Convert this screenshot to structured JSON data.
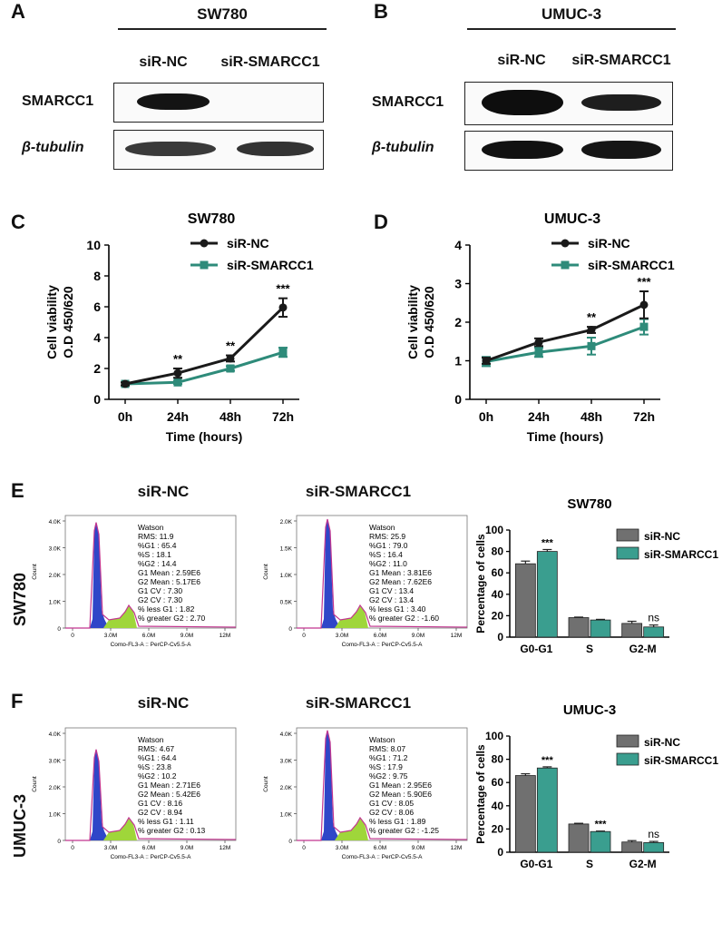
{
  "panels": {
    "A": {
      "letter": "A",
      "title": "SW780",
      "cols": [
        "siR-NC",
        "siR-SMARCC1"
      ],
      "rows": [
        "SMARCC1",
        "β-tubulin"
      ]
    },
    "B": {
      "letter": "B",
      "title": "UMUC-3",
      "cols": [
        "siR-NC",
        "siR-SMARCC1"
      ],
      "rows": [
        "SMARCC1",
        "β-tubulin"
      ]
    },
    "E": {
      "letter": "E",
      "side": "SW780",
      "cond1": "siR-NC",
      "cond2": "siR-SMARCC1",
      "bar_title": "SW780"
    },
    "F": {
      "letter": "F",
      "side": "UMUC-3",
      "cond1": "siR-NC",
      "cond2": "siR-SMARCC1",
      "bar_title": "UMUC-3"
    }
  },
  "flow": {
    "xlabel": "Comp-FL3-A :: PerCP-Cy5.5-A",
    "count_label": "Count",
    "xticks": [
      "0",
      "3.0M",
      "6.0M",
      "9.0M",
      "12M"
    ],
    "E_nc": {
      "yticks": [
        "0",
        "1.0K",
        "2.0K",
        "3.0K",
        "4.0K"
      ],
      "stats": [
        "Watson",
        "RMS: 11.9",
        "%G1  : 65.4",
        "%S  : 18.1",
        "%G2  : 14.4",
        "G1 Mean  : 2.59E6",
        "G2 Mean  : 5.17E6",
        "G1 CV  : 7.30",
        "G2 CV  : 7.30",
        "% less G1  : 1.82",
        "% greater G2  : 2.70"
      ]
    },
    "E_si": {
      "yticks": [
        "0",
        "0.5K",
        "1.0K",
        "1.5K",
        "2.0K"
      ],
      "stats": [
        "Watson",
        "RMS: 25.9",
        "%G1  : 79.0",
        "%S  : 16.4",
        "%G2  : 11.0",
        "G1 Mean  : 3.81E6",
        "G2 Mean  : 7.62E6",
        "G1 CV  : 13.4",
        "G2 CV  : 13.4",
        "% less G1  : 3.40",
        "% greater G2  : -1.60"
      ]
    },
    "F_nc": {
      "yticks": [
        "0",
        "1.0K",
        "2.0K",
        "3.0K",
        "4.0K"
      ],
      "stats": [
        "Watson",
        "RMS: 4.67",
        "%G1  : 64.4",
        "%S  : 23.8",
        "%G2  : 10.2",
        "G1 Mean  : 2.71E6",
        "G2 Mean  : 5.42E6",
        "G1 CV  : 8.16",
        "G2 CV  : 8.94",
        "% less G1  : 1.11",
        "% greater G2  : 0.13"
      ]
    },
    "F_si": {
      "yticks": [
        "0",
        "1.0K",
        "2.0K",
        "3.0K",
        "4.0K"
      ],
      "stats": [
        "Watson",
        "RMS: 8.07",
        "%G1  : 71.2",
        "%S  : 17.9",
        "%G2  : 9.75",
        "G1 Mean  : 2.95E6",
        "G2 Mean  : 5.90E6",
        "G1 CV  : 8.05",
        "G2 CV  : 8.06",
        "% less G1  : 1.89",
        "% greater G2  : -1.25"
      ]
    }
  },
  "chart_data": [
    {
      "id": "C",
      "letter": "C",
      "type": "line",
      "title": "SW780",
      "xlabel": "Time (hours)",
      "ylabel": "Cell viability O.D 450/620",
      "categories": [
        "0h",
        "24h",
        "48h",
        "72h"
      ],
      "ylim": [
        0,
        10
      ],
      "yticks": [
        0,
        2,
        4,
        6,
        8,
        10
      ],
      "series": [
        {
          "name": "siR-NC",
          "color": "#1a1a1a",
          "values": [
            1.0,
            1.7,
            2.65,
            5.95
          ],
          "err": [
            0.1,
            0.3,
            0.2,
            0.6
          ]
        },
        {
          "name": "siR-SMARCC1",
          "color": "#2e8b7a",
          "values": [
            1.0,
            1.1,
            2.0,
            3.05
          ],
          "err": [
            0.1,
            0.1,
            0.15,
            0.3
          ]
        }
      ],
      "annotations": [
        "",
        "**",
        "**",
        "***"
      ]
    },
    {
      "id": "D",
      "letter": "D",
      "type": "line",
      "title": "UMUC-3",
      "xlabel": "Time (hours)",
      "ylabel": "Cell viability O.D 450/620",
      "categories": [
        "0h",
        "24h",
        "48h",
        "72h"
      ],
      "ylim": [
        0,
        4
      ],
      "yticks": [
        0,
        1,
        2,
        3,
        4
      ],
      "series": [
        {
          "name": "siR-NC",
          "color": "#1a1a1a",
          "values": [
            1.0,
            1.48,
            1.8,
            2.45
          ],
          "err": [
            0.08,
            0.1,
            0.08,
            0.35
          ]
        },
        {
          "name": "siR-SMARCC1",
          "color": "#2e8b7a",
          "values": [
            0.98,
            1.22,
            1.38,
            1.88
          ],
          "err": [
            0.12,
            0.12,
            0.22,
            0.2
          ]
        }
      ],
      "annotations": [
        "",
        "",
        "**",
        "***"
      ]
    },
    {
      "id": "Ebar",
      "type": "bar",
      "title": "SW780",
      "ylabel": "Percentage of cells",
      "categories": [
        "G0-G1",
        "S",
        "G2-M"
      ],
      "ylim": [
        0,
        100
      ],
      "yticks": [
        0,
        20,
        40,
        60,
        80,
        100
      ],
      "series": [
        {
          "name": "siR-NC",
          "color": "#707070",
          "values": [
            68.5,
            18.2,
            12.8
          ],
          "err": [
            2.5,
            0.5,
            2.0
          ]
        },
        {
          "name": "siR-SMARCC1",
          "color": "#3a9e8f",
          "values": [
            80.0,
            16.0,
            9.5
          ],
          "err": [
            1.8,
            0.6,
            1.8
          ]
        }
      ],
      "annotations": [
        "***",
        "",
        "ns"
      ]
    },
    {
      "id": "Fbar",
      "type": "bar",
      "title": "UMUC-3",
      "ylabel": "Percentage of cells",
      "categories": [
        "G0-G1",
        "S",
        "G2-M"
      ],
      "ylim": [
        0,
        100
      ],
      "yticks": [
        0,
        20,
        40,
        60,
        80,
        100
      ],
      "series": [
        {
          "name": "siR-NC",
          "color": "#707070",
          "values": [
            66.0,
            24.3,
            8.8
          ],
          "err": [
            1.5,
            0.6,
            1.2
          ]
        },
        {
          "name": "siR-SMARCC1",
          "color": "#3a9e8f",
          "values": [
            72.5,
            17.8,
            8.3
          ],
          "err": [
            1.0,
            0.4,
            1.0
          ]
        }
      ],
      "annotations": [
        "***",
        "***",
        "ns"
      ]
    }
  ]
}
